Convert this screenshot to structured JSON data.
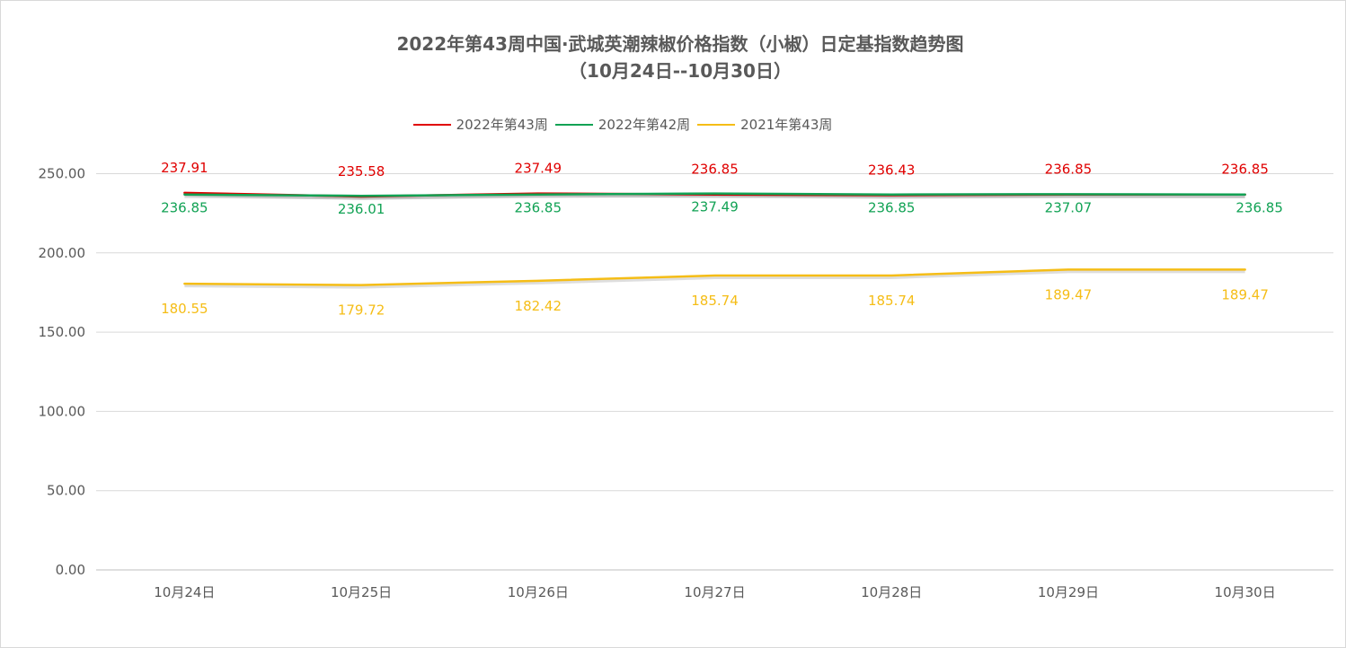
{
  "chart_data": {
    "type": "line",
    "title": "2022年第43周中国·武城英潮辣椒价格指数（小椒）日定基指数趋势图",
    "subtitle": "（10月24日--10月30日）",
    "categories": [
      "10月24日",
      "10月25日",
      "10月26日",
      "10月27日",
      "10月28日",
      "10月29日",
      "10月30日"
    ],
    "series": [
      {
        "name": "2022年第43周",
        "color": "#e00000",
        "values": [
          237.91,
          235.58,
          237.49,
          236.85,
          236.43,
          236.85,
          236.85
        ],
        "labels": [
          "237.91",
          "235.58",
          "237.49",
          "236.85",
          "236.43",
          "236.85",
          "236.85"
        ]
      },
      {
        "name": "2022年第42周",
        "color": "#11a254",
        "values": [
          236.85,
          236.01,
          236.85,
          237.49,
          236.85,
          237.07,
          236.85
        ],
        "labels": [
          "236.85",
          "236.01",
          "236.85",
          "237.49",
          "236.85",
          "237.07",
          "236.85"
        ]
      },
      {
        "name": "2021年第43周",
        "color": "#f5bd16",
        "values": [
          180.55,
          179.72,
          182.42,
          185.74,
          185.74,
          189.47,
          189.47
        ],
        "labels": [
          "180.55",
          "179.72",
          "182.42",
          "185.74",
          "185.74",
          "189.47",
          "189.47"
        ]
      }
    ],
    "yticks": [
      "0.00",
      "50.00",
      "100.00",
      "150.00",
      "200.00",
      "250.00"
    ],
    "ylim": [
      0,
      250
    ],
    "grid": true,
    "legend_position": "top"
  }
}
